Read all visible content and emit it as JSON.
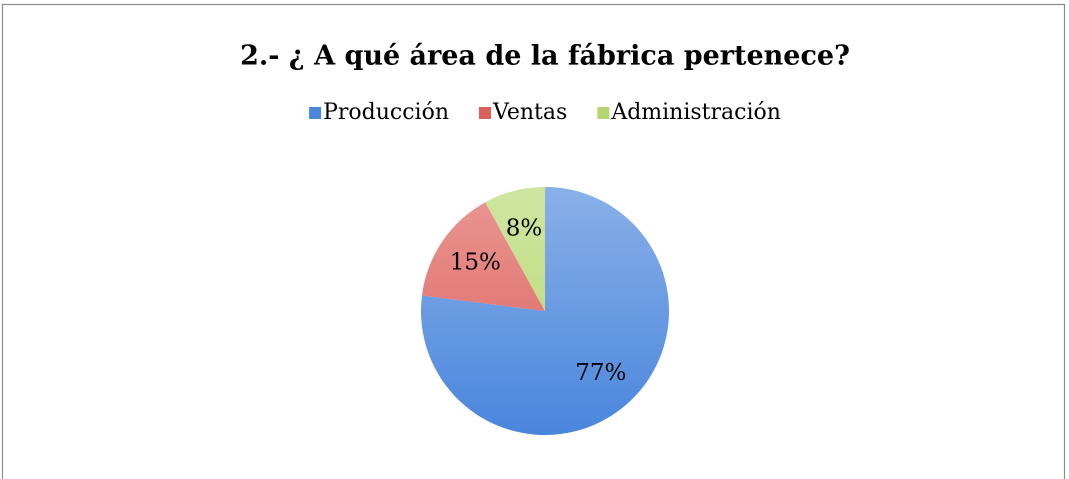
{
  "chart_data": {
    "type": "pie",
    "title": "2.- ¿ A qué área de la fábrica pertenece?",
    "categories": [
      "Producción",
      "Ventas",
      "Administración"
    ],
    "values": [
      77,
      15,
      8
    ],
    "value_labels": [
      "77%",
      "15%",
      "8%"
    ],
    "colors": [
      "#4a86dc",
      "#dd5f5a",
      "#b5d86e"
    ],
    "legend": "top"
  }
}
